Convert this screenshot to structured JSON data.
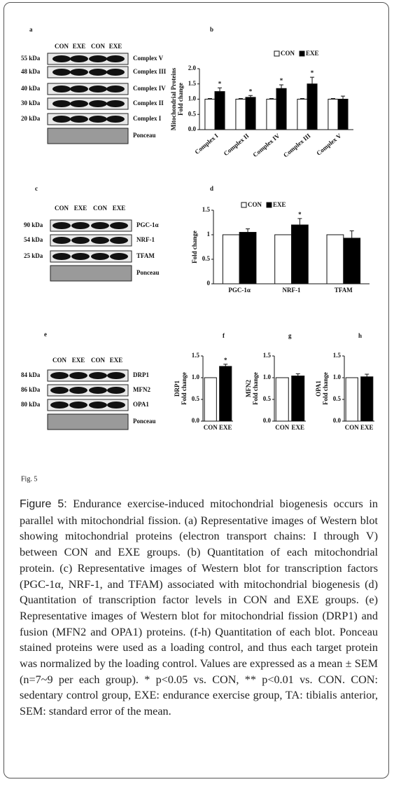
{
  "blots": [
    {
      "letter": "a",
      "columns": [
        "CON",
        "EXE",
        "CON",
        "EXE"
      ],
      "rows": [
        {
          "kda": "55 kDa",
          "protein": "Complex V"
        },
        {
          "kda": "48 kDa",
          "protein": "Complex III"
        },
        {
          "kda": "40 kDa",
          "protein": "Complex IV"
        },
        {
          "kda": "30 kDa",
          "protein": "Complex II"
        },
        {
          "kda": "20 kDa",
          "protein": "Complex I"
        }
      ],
      "loading": "Ponceau"
    },
    {
      "letter": "c",
      "columns": [
        "CON",
        "EXE",
        "CON",
        "EXE"
      ],
      "rows": [
        {
          "kda": "90 kDa",
          "protein": "PGC-1α"
        },
        {
          "kda": "54 kDa",
          "protein": "NRF-1"
        },
        {
          "kda": "25 kDa",
          "protein": "TFAM"
        }
      ],
      "loading": "Ponceau"
    },
    {
      "letter": "e",
      "columns": [
        "CON",
        "EXE",
        "CON",
        "EXE"
      ],
      "rows": [
        {
          "kda": "84 kDa",
          "protein": "DRP1"
        },
        {
          "kda": "86 kDa",
          "protein": "MFN2"
        },
        {
          "kda": "80 kDa",
          "protein": "OPA1"
        }
      ],
      "loading": "Ponceau"
    }
  ],
  "chart_data": [
    {
      "type": "bar",
      "letter": "b",
      "y_label": [
        "Mitochondrial Proteins",
        "Fold change"
      ],
      "categories": [
        "Complex I",
        "Complex II",
        "Complex IV",
        "Complex III",
        "Complex V"
      ],
      "series": [
        {
          "name": "CON",
          "color": "#ffffff",
          "values": [
            1.0,
            1.0,
            1.0,
            1.0,
            1.0
          ],
          "errors": [
            0.02,
            0.02,
            0.02,
            0.02,
            0.02
          ]
        },
        {
          "name": "EXE",
          "color": "#000000",
          "values": [
            1.25,
            1.06,
            1.35,
            1.5,
            1.0
          ],
          "errors": [
            0.12,
            0.06,
            0.12,
            0.22,
            0.1
          ],
          "significance": [
            "*",
            "*",
            "*",
            "*",
            null
          ]
        }
      ],
      "ylim": [
        0,
        2
      ],
      "yticks": [
        {
          "value": 0,
          "label": "0.0"
        },
        {
          "value": 0.5,
          "label": "0.5"
        },
        {
          "value": 1,
          "label": "1.0"
        },
        {
          "value": 1.5,
          "label": "1.5"
        },
        {
          "value": 2,
          "label": "2.0"
        }
      ]
    },
    {
      "type": "bar",
      "letter": "d",
      "y_label": [
        "Fold change"
      ],
      "categories": [
        "PGC-1α",
        "NRF-1",
        "TFAM"
      ],
      "series": [
        {
          "name": "CON",
          "color": "#ffffff",
          "values": [
            1.0,
            1.0,
            1.0
          ],
          "errors": [
            0.0,
            0.0,
            0.0
          ]
        },
        {
          "name": "EXE",
          "color": "#000000",
          "values": [
            1.05,
            1.2,
            0.93
          ],
          "errors": [
            0.07,
            0.13,
            0.15
          ],
          "significance": [
            null,
            "*",
            null
          ]
        }
      ],
      "ylim": [
        0,
        1.5
      ],
      "yticks": [
        0,
        0.5,
        1,
        1.5
      ]
    },
    {
      "type": "bar",
      "letter": "f",
      "y_label": [
        "DRP1",
        "Fold change"
      ],
      "categories": [
        "CON",
        "EXE"
      ],
      "values": [
        1.0,
        1.26
      ],
      "colors": [
        "#ffffff",
        "#000000"
      ],
      "errors": [
        0.0,
        0.05
      ],
      "significance": [
        null,
        "*"
      ],
      "ylim": [
        0,
        1.5
      ],
      "yticks": [
        {
          "value": 0,
          "label": "0.0"
        },
        {
          "value": 0.5,
          "label": "0.5"
        },
        {
          "value": 1,
          "label": "1.0"
        },
        {
          "value": 1.5,
          "label": "1.5"
        }
      ]
    },
    {
      "type": "bar",
      "letter": "g",
      "y_label": [
        "MFN2",
        "Fold change"
      ],
      "categories": [
        "CON",
        "EXE"
      ],
      "values": [
        1.0,
        1.04
      ],
      "colors": [
        "#ffffff",
        "#000000"
      ],
      "errors": [
        0.0,
        0.05
      ],
      "ylim": [
        0,
        1.5
      ],
      "yticks": [
        {
          "value": 0,
          "label": "0.0"
        },
        {
          "value": 0.5,
          "label": "0.5"
        },
        {
          "value": 1,
          "label": "1.0"
        },
        {
          "value": 1.5,
          "label": "1.5"
        }
      ]
    },
    {
      "type": "bar",
      "letter": "h",
      "y_label": [
        "OPA1",
        "Fold change"
      ],
      "categories": [
        "CON",
        "EXE"
      ],
      "values": [
        1.0,
        1.02
      ],
      "colors": [
        "#ffffff",
        "#000000"
      ],
      "errors": [
        0.0,
        0.06
      ],
      "ylim": [
        0,
        1.5
      ],
      "yticks": [
        {
          "value": 0,
          "label": "0.0"
        },
        {
          "value": 0.5,
          "label": "0.5"
        },
        {
          "value": 1,
          "label": "1.0"
        },
        {
          "value": 1.5,
          "label": "1.5"
        }
      ]
    }
  ],
  "fig_label": "Fig. 5",
  "caption": {
    "label": "Figure 5:",
    "text": "Endurance exercise-induced mitochondrial biogenesis occurs in parallel with mitochondrial fission. (a) Representative images of Western blot showing mitochondrial proteins (electron transport chains: I through V) between CON and EXE groups. (b) Quantitation of each mitochondrial protein. (c) Representative images of Western blot for transcription factors (PGC-1α, NRF-1, and TFAM) associated with mitochondrial biogenesis (d) Quantitation of transcription factor levels in CON and EXE groups. (e) Representative images of Western blot for mitochondrial fission (DRP1) and fusion (MFN2 and OPA1) proteins. (f-h) Quantitation of each blot. Ponceau stained proteins were used as a loading control, and thus each target protein was normalized by the loading control. Values are expressed as a mean ± SEM (n=7~9 per each group). * p<0.05 vs. CON, ** p<0.01 vs. CON. CON: sedentary control group, EXE: endurance exercise group, TA: tibialis anterior, SEM: standard error of the mean."
  }
}
